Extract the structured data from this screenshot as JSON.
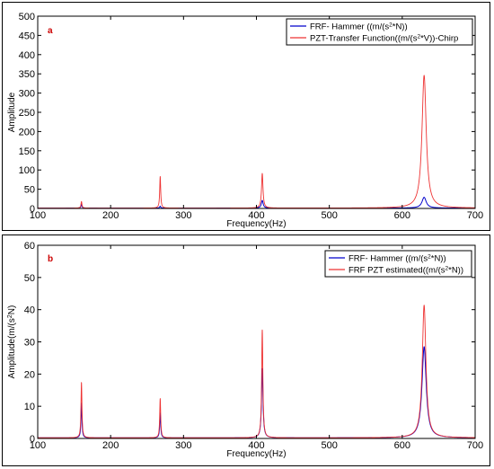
{
  "chart_data": [
    {
      "type": "line",
      "panel_label": "a",
      "xlabel": "Frequency(Hz)",
      "ylabel": "Amplitude",
      "xlim": [
        100,
        700
      ],
      "ylim": [
        0,
        500
      ],
      "xticks": [
        100,
        200,
        300,
        400,
        500,
        600,
        700
      ],
      "yticks": [
        0,
        50,
        100,
        150,
        200,
        250,
        300,
        350,
        400,
        450,
        500
      ],
      "legend_position": "top-right",
      "series": [
        {
          "name_parts": [
            "FRF- Hammer ((m/(s",
            "2",
            "*N))"
          ],
          "color": "#0000cc",
          "baseline": 1,
          "peaks": [
            {
              "f": 160,
              "a": 10,
              "w": 0.8
            },
            {
              "f": 268,
              "a": 5,
              "w": 0.8
            },
            {
              "f": 408,
              "a": 20,
              "w": 1.5
            },
            {
              "f": 630,
              "a": 28,
              "w": 3.5
            }
          ]
        },
        {
          "name_parts": [
            "PZT-Transfer Function((m/(s",
            "2",
            "*V))-Chirp"
          ],
          "color": "#ee3333",
          "baseline": 1,
          "peaks": [
            {
              "f": 160,
              "a": 17,
              "w": 0.8
            },
            {
              "f": 268,
              "a": 82,
              "w": 0.8
            },
            {
              "f": 408,
              "a": 90,
              "w": 1.2
            },
            {
              "f": 630,
              "a": 345,
              "w": 3.5
            }
          ]
        }
      ]
    },
    {
      "type": "line",
      "panel_label": "b",
      "xlabel": "Frequency(Hz)",
      "ylabel_parts": [
        "Amplitude(m/(s",
        "2",
        "N)"
      ],
      "xlim": [
        100,
        700
      ],
      "ylim": [
        0,
        60
      ],
      "xticks": [
        100,
        200,
        300,
        400,
        500,
        600,
        700
      ],
      "yticks": [
        0,
        10,
        20,
        30,
        40,
        50,
        60
      ],
      "legend_position": "top-right",
      "series": [
        {
          "name_parts": [
            "FRF- Hammer ((m/(s",
            "2",
            "*N))"
          ],
          "color": "#0000cc",
          "baseline": 0.2,
          "peaks": [
            {
              "f": 160,
              "a": 10.8,
              "w": 0.8
            },
            {
              "f": 268,
              "a": 7.8,
              "w": 0.8
            },
            {
              "f": 408,
              "a": 21.5,
              "w": 1.2
            },
            {
              "f": 630,
              "a": 28.3,
              "w": 3.5
            }
          ]
        },
        {
          "name_parts": [
            "FRF PZT estimated((m/(s",
            "2",
            "*N))"
          ],
          "color": "#ee3333",
          "baseline": 0.2,
          "peaks": [
            {
              "f": 160,
              "a": 17.2,
              "w": 0.8
            },
            {
              "f": 268,
              "a": 12.2,
              "w": 0.8
            },
            {
              "f": 408,
              "a": 33.5,
              "w": 1.0
            },
            {
              "f": 630,
              "a": 41.2,
              "w": 3.0
            }
          ]
        }
      ]
    }
  ]
}
